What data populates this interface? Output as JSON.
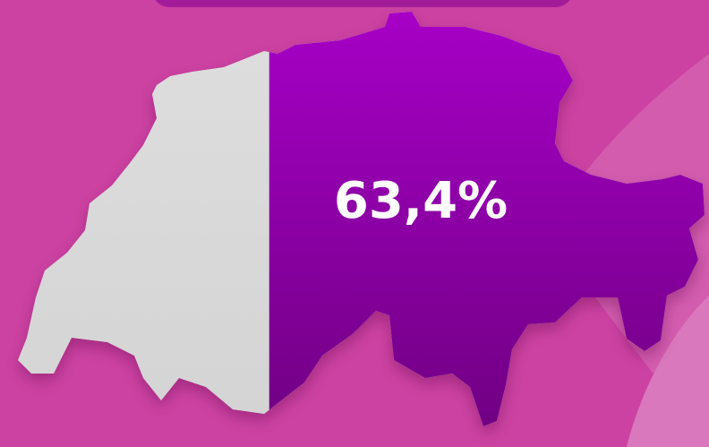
{
  "chart_data": {
    "type": "map-fill",
    "values": [
      63.4
    ],
    "value_labels": [
      "63,4%"
    ],
    "xlim": [
      0,
      100
    ],
    "color": "#a800c8",
    "rest_color": "#dedede"
  }
}
